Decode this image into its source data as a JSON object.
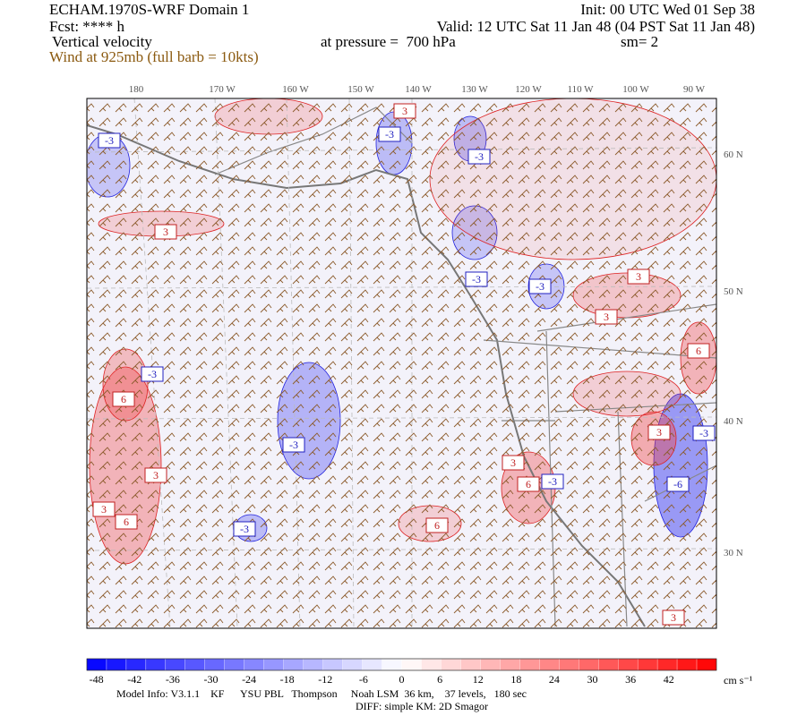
{
  "header": {
    "title": "ECHAM.1970S-WRF Domain 1",
    "init": "Init: 00 UTC Wed 01 Sep 38",
    "fcst": "Fcst: **** h",
    "valid": "Valid: 12 UTC Sat 11 Jan 48 (04 PST Sat 11 Jan 48)",
    "field": "Vertical velocity",
    "pressure": "at pressure =  700 hPa",
    "smoothing": "sm= 2",
    "wind": "Wind at 925mb (full barb = 10kts)"
  },
  "map": {
    "lon_labels": [
      "180",
      "170 W",
      "160 W",
      "150 W",
      "140 W",
      "130 W",
      "120 W",
      "110 W",
      "100 W",
      "90 W"
    ],
    "lat_labels": [
      "60 N",
      "50 N",
      "40 N",
      "30 N"
    ],
    "contour_labels": [
      "-3",
      "3",
      "-3",
      "-3",
      "3",
      "-3",
      "-3",
      "3",
      "3",
      "-3",
      "6",
      "6",
      "3",
      "-3",
      "3",
      "-3",
      "3",
      "6",
      "-3",
      "-6",
      "3",
      "6",
      "-3",
      "6",
      "3"
    ]
  },
  "colorbar": {
    "levels": [
      -48,
      -42,
      -36,
      -30,
      -24,
      -18,
      -12,
      -6,
      0,
      6,
      12,
      18,
      24,
      30,
      36,
      42
    ],
    "unit": "cm s⁻¹"
  },
  "footer": {
    "model_info": "Model Info: V3.1.1    KF      YSU PBL   Thompson     Noah LSM  36 km,    37 levels,   180 sec",
    "diff": "DIFF: simple KM: 2D Smagor"
  }
}
